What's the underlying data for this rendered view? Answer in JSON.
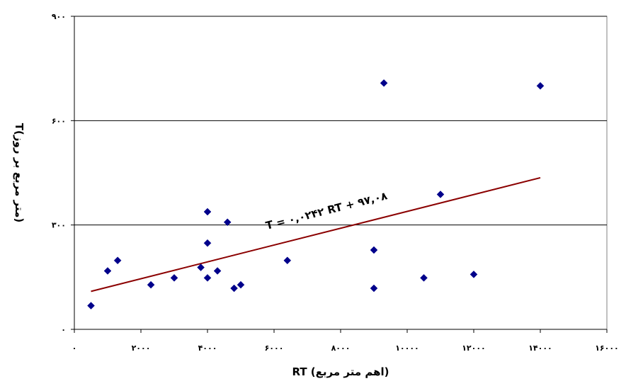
{
  "chart_data": {
    "type": "scatter",
    "xlabel": "RT (اهم متر مربع)",
    "ylabel": "T(متر مربع بر روز)",
    "xlim": [
      0,
      16000
    ],
    "ylim": [
      0,
      900
    ],
    "x_ticks": [
      0,
      2000,
      4000,
      6000,
      8000,
      10000,
      12000,
      14000,
      16000
    ],
    "x_tick_labels": [
      "۰",
      "۲۰۰۰",
      "۴۰۰۰",
      "۶۰۰۰",
      "۸۰۰۰",
      "۱۰۰۰۰",
      "۱۲۰۰۰",
      "۱۴۰۰۰",
      "۱۶۰۰۰"
    ],
    "y_ticks": [
      0,
      300,
      600,
      900
    ],
    "y_tick_labels": [
      "۰",
      "۳۰۰",
      "۶۰۰",
      "۹۰۰"
    ],
    "grid": {
      "y_major": true,
      "x_major": false
    },
    "points": [
      {
        "x": 500,
        "y": 68
      },
      {
        "x": 1000,
        "y": 168
      },
      {
        "x": 1300,
        "y": 198
      },
      {
        "x": 2300,
        "y": 128
      },
      {
        "x": 3000,
        "y": 148
      },
      {
        "x": 3800,
        "y": 178
      },
      {
        "x": 4000,
        "y": 338
      },
      {
        "x": 4000,
        "y": 248
      },
      {
        "x": 4000,
        "y": 148
      },
      {
        "x": 4300,
        "y": 168
      },
      {
        "x": 4600,
        "y": 308
      },
      {
        "x": 4800,
        "y": 118
      },
      {
        "x": 5000,
        "y": 128
      },
      {
        "x": 6400,
        "y": 198
      },
      {
        "x": 9000,
        "y": 228
      },
      {
        "x": 9000,
        "y": 118
      },
      {
        "x": 9300,
        "y": 708
      },
      {
        "x": 10500,
        "y": 148
      },
      {
        "x": 11000,
        "y": 388
      },
      {
        "x": 12000,
        "y": 158
      },
      {
        "x": 14000,
        "y": 700
      }
    ],
    "trendline": {
      "slope": 0.0242,
      "intercept": 97.08,
      "x_start": 500,
      "x_end": 14000
    },
    "annotation": "T = ۰,۰۲۴۲ RT + ۹۷,۰۸",
    "colors": {
      "marker": "#00008B",
      "trendline": "#8B0000",
      "grid": "#000000"
    }
  }
}
